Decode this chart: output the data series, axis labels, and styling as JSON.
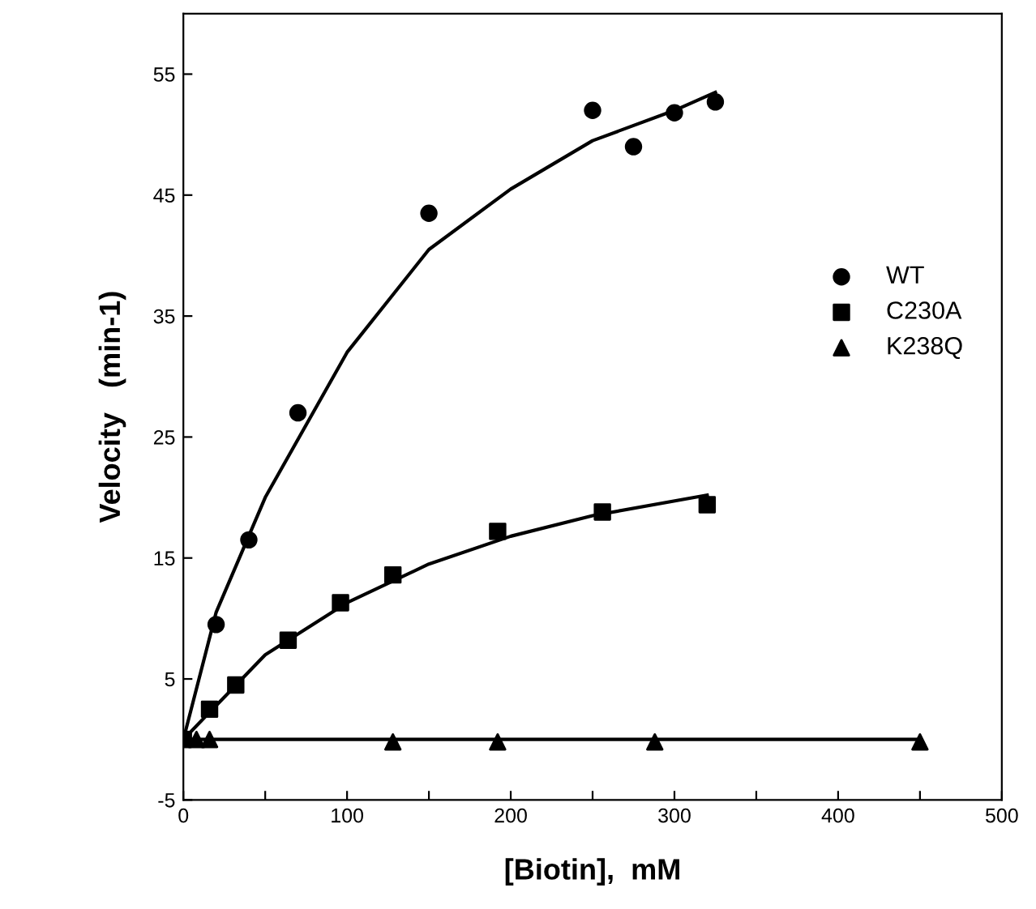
{
  "chart_data": {
    "type": "scatter",
    "xlabel": "[Biotin],  mM",
    "ylabel": "Velocity   (min-1)",
    "xlim": [
      0,
      500
    ],
    "ylim": [
      -5,
      60
    ],
    "xticks": [
      0,
      {
        "value": 50,
        "label": null
      },
      100,
      {
        "value": 150,
        "label": null
      },
      200,
      {
        "value": 250,
        "label": null
      },
      300,
      {
        "value": 350,
        "label": null
      },
      400,
      {
        "value": 450,
        "label": null
      },
      500
    ],
    "yticks": [
      -5,
      5,
      15,
      25,
      35,
      45,
      55
    ],
    "grid": false,
    "legend": "right",
    "series": [
      {
        "name": "WT",
        "marker": "circle",
        "color": "#000000",
        "x": [
          20,
          40,
          70,
          150,
          250,
          275,
          300,
          325
        ],
        "values": [
          9.5,
          16.5,
          27,
          43.5,
          52,
          49,
          51.8,
          52.7
        ]
      },
      {
        "name": "C230A",
        "marker": "square",
        "color": "#000000",
        "x": [
          0,
          16,
          32,
          64,
          96,
          128,
          192,
          256,
          320
        ],
        "values": [
          0,
          2.5,
          4.5,
          8.2,
          11.3,
          13.6,
          17.2,
          18.8,
          19.4
        ]
      },
      {
        "name": "K238Q",
        "marker": "triangle",
        "color": "#000000",
        "x": [
          8,
          16,
          128,
          192,
          288,
          450
        ],
        "values": [
          0,
          0,
          -0.2,
          -0.2,
          -0.2,
          -0.2
        ]
      },
      {
        "type": "line",
        "marker": "none",
        "line_style": "solid",
        "color": "#000000",
        "x": [
          0,
          20,
          50,
          100,
          150,
          200,
          250,
          300,
          325
        ],
        "values": [
          0,
          10.5,
          20,
          32,
          40.5,
          45.5,
          49.5,
          52,
          53.5
        ]
      },
      {
        "type": "line",
        "marker": "none",
        "line_style": "solid",
        "color": "#000000",
        "x": [
          0,
          50,
          100,
          150,
          200,
          250,
          320
        ],
        "values": [
          0,
          7,
          11.3,
          14.5,
          16.8,
          18.5,
          20.2
        ]
      },
      {
        "type": "line",
        "marker": "none",
        "line_style": "solid",
        "color": "#000000",
        "x": [
          0,
          450
        ],
        "values": [
          0,
          0
        ]
      }
    ]
  }
}
